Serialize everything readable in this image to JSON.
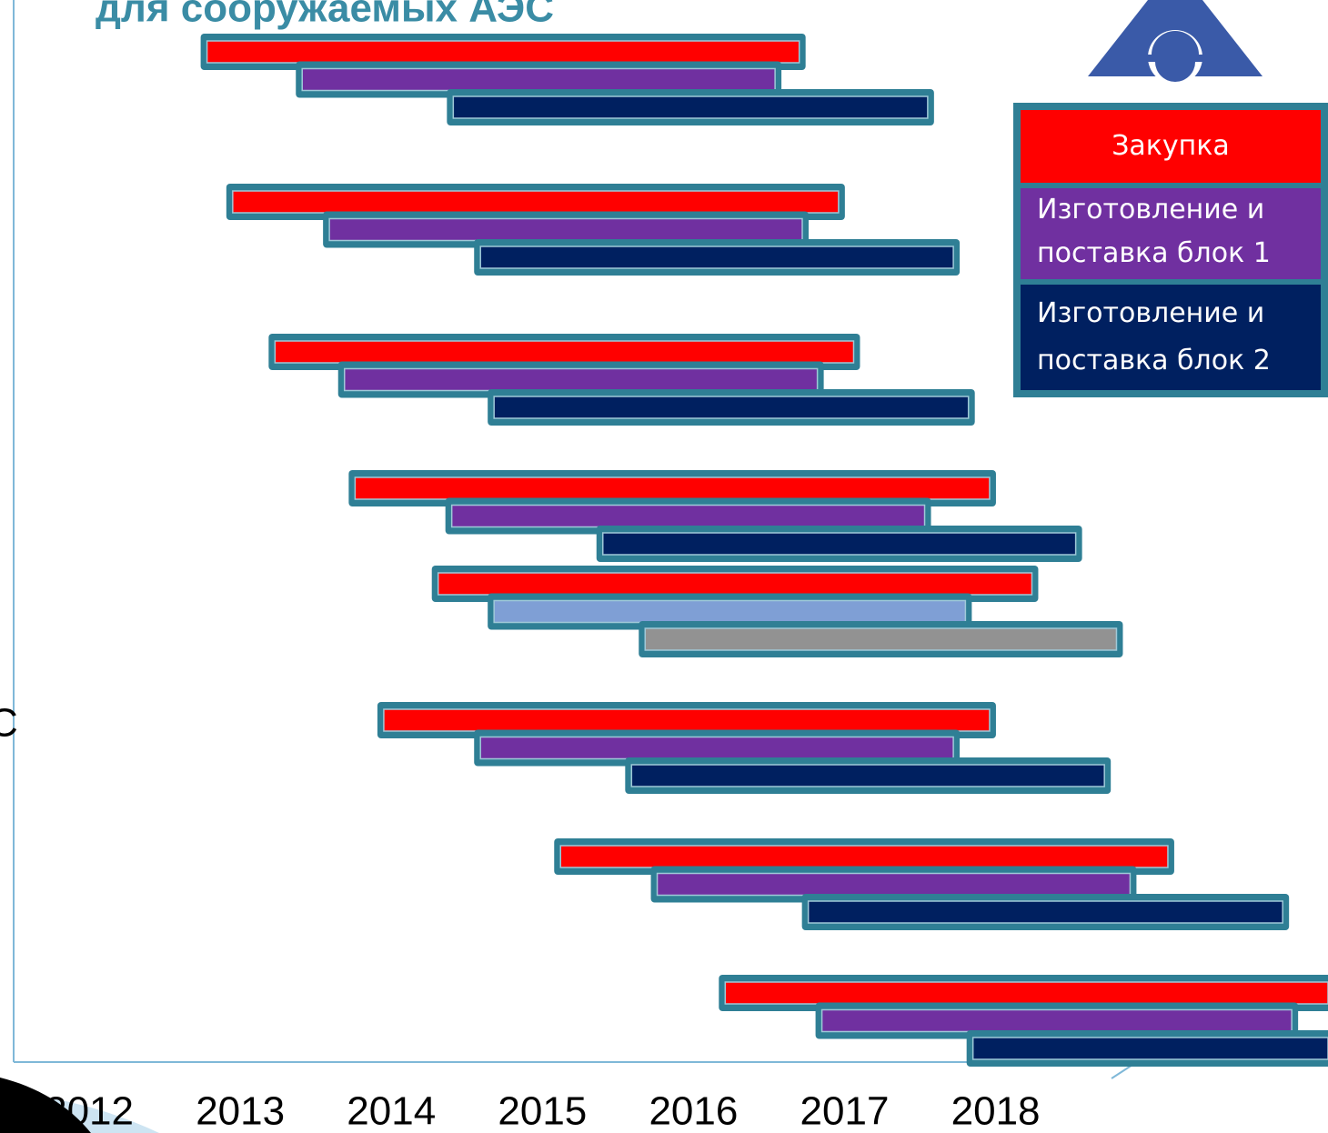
{
  "chart_data": {
    "type": "gantt",
    "title": "для сооружаемых АЭС",
    "annotations": [
      "С"
    ],
    "xlim": [
      2011.5,
      2020.2
    ],
    "xticks": [
      2012,
      2013,
      2014,
      2015,
      2016,
      2017,
      2018
    ],
    "series": [
      {
        "name": "Закупка",
        "color": "#ff0000",
        "start": [
          2012.78,
          2012.95,
          2013.23,
          2013.76,
          2014.31,
          2013.95,
          2015.12,
          2016.21
        ],
        "end": [
          2016.7,
          2016.96,
          2017.06,
          2017.96,
          2018.24,
          2017.96,
          2019.14,
          2020.2
        ]
      },
      {
        "name": "Изготовление и поставка блок 1",
        "color": "#7030a0",
        "colors": [
          "#7030a0",
          "#7030a0",
          "#7030a0",
          "#7030a0",
          "#7f9fd5",
          "#7030a0",
          "#7030a0",
          "#7030a0"
        ],
        "start": [
          2013.41,
          2013.59,
          2013.69,
          2014.4,
          2014.68,
          2014.59,
          2015.76,
          2016.85
        ],
        "end": [
          2016.54,
          2016.72,
          2016.82,
          2017.53,
          2017.8,
          2017.72,
          2018.89,
          2019.96
        ]
      },
      {
        "name": "Изготовление и поставка блок 2",
        "color": "#002060",
        "colors": [
          "#002060",
          "#002060",
          "#002060",
          "#002060",
          "#929292",
          "#002060",
          "#002060",
          "#002060"
        ],
        "start": [
          2014.41,
          2014.59,
          2014.68,
          2015.4,
          2015.68,
          2015.59,
          2016.76,
          2017.85
        ],
        "end": [
          2017.55,
          2017.72,
          2017.82,
          2018.53,
          2018.8,
          2018.72,
          2019.9,
          2020.2
        ]
      }
    ]
  }
}
